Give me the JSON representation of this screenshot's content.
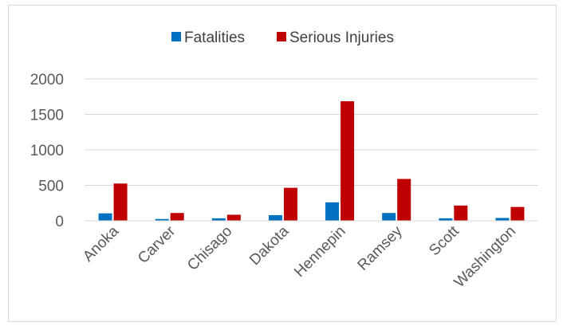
{
  "chart_data": {
    "type": "bar",
    "categories": [
      "Anoka",
      "Carver",
      "Chisago",
      "Dakota",
      "Hennepin",
      "Ramsey",
      "Scott",
      "Washington"
    ],
    "series": [
      {
        "name": "Fatalities",
        "color": "#0070c0",
        "values": [
          105,
          25,
          35,
          80,
          260,
          110,
          35,
          40
        ]
      },
      {
        "name": "Serious Injuries",
        "color": "#c00000",
        "values": [
          525,
          110,
          85,
          465,
          1685,
          590,
          215,
          195
        ]
      }
    ],
    "yticks": [
      0,
      500,
      1000,
      1500,
      2000
    ],
    "ylim": [
      0,
      2000
    ],
    "grid": true,
    "legend": "top-center"
  }
}
